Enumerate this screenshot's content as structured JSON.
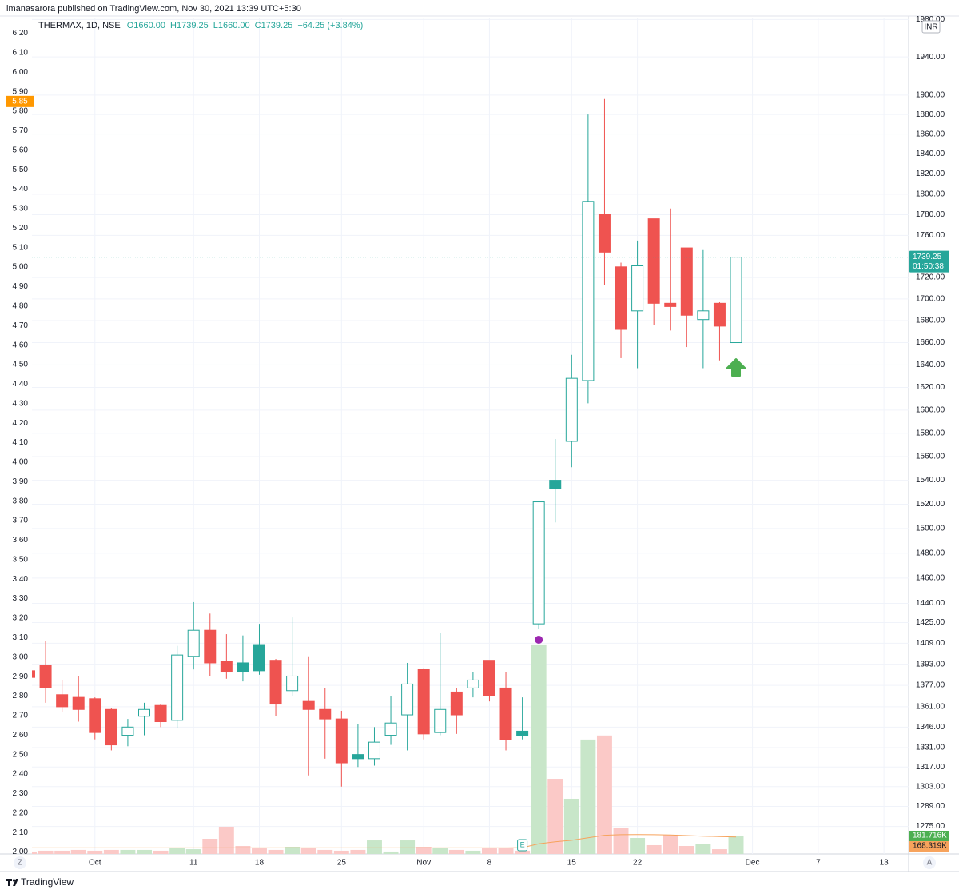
{
  "header": "imanasarora published on TradingView.com, Nov 30, 2021 13:39 UTC+5:30",
  "footer": "TradingView",
  "chart_data": {
    "type": "candlestick",
    "symbol": "THERMAX, 1D, NSE",
    "legend_values": [
      "O1660.00",
      "H1739.25",
      "L1660.00",
      "C1739.25",
      "+64.25 (+3.84%)"
    ],
    "currency": "INR",
    "countdown": "01:50:38",
    "buttons": [
      "Z",
      "A"
    ],
    "earnings_label": "E",
    "log_scale": true,
    "grid": true,
    "up_color": "#26a69a",
    "down_color": "#ef5350",
    "open": [
      1388,
      1392,
      1370,
      1368,
      1367,
      1359,
      1340,
      1354,
      1362,
      1351,
      1399,
      1419,
      1395,
      1394,
      1408,
      1396,
      1373,
      1365,
      1359,
      1352,
      1326,
      1323,
      1340,
      1355,
      1389,
      1342,
      1372,
      1375,
      1396,
      1375,
      1343,
      1424,
      1540,
      1573,
      1626,
      1780,
      1730,
      1689,
      1776,
      1696,
      1748,
      1681,
      1696,
      1660
    ],
    "high": [
      1390,
      1411,
      1381,
      1384,
      1368,
      1360,
      1352,
      1364,
      1363,
      1407,
      1441,
      1432,
      1416,
      1415,
      1424,
      1397,
      1429,
      1399,
      1375,
      1358,
      1348,
      1346,
      1369,
      1394,
      1390,
      1417,
      1375,
      1387,
      1396,
      1387,
      1368,
      1523,
      1575,
      1649,
      1880,
      1896,
      1734,
      1755,
      1776,
      1786,
      1748,
      1746,
      1697,
      1739.25
    ],
    "low": [
      1380,
      1364,
      1357,
      1350,
      1337,
      1329,
      1332,
      1340,
      1346,
      1345,
      1389,
      1384,
      1382,
      1380,
      1385,
      1354,
      1369,
      1311,
      1323,
      1303,
      1317,
      1318,
      1333,
      1329,
      1337,
      1340,
      1341,
      1368,
      1365,
      1329,
      1337,
      1420,
      1505,
      1551,
      1606,
      1713,
      1646,
      1637,
      1676,
      1671,
      1656,
      1637,
      1644,
      1660
    ],
    "close": [
      1383,
      1375,
      1361,
      1359,
      1342,
      1333,
      1346,
      1359,
      1350,
      1400,
      1419,
      1394,
      1387,
      1387,
      1388,
      1363,
      1384,
      1359,
      1352,
      1320,
      1323,
      1335,
      1349,
      1378,
      1341,
      1359,
      1355,
      1381,
      1369,
      1337,
      1340,
      1522,
      1533,
      1628,
      1793,
      1744,
      1672,
      1731,
      1696,
      1693,
      1685,
      1689,
      1675,
      1739.25
    ],
    "volume": [
      24000,
      32000,
      32000,
      40000,
      32000,
      40000,
      40000,
      40000,
      32000,
      63000,
      47000,
      150000,
      269000,
      79000,
      55000,
      40000,
      71000,
      63000,
      40000,
      32000,
      40000,
      134000,
      24000,
      134000,
      71000,
      63000,
      40000,
      32000,
      55000,
      63000,
      32000,
      2070000,
      742000,
      545000,
      1130000,
      1170000,
      253000,
      158000,
      87000,
      190000,
      79000,
      95000,
      47000,
      181716
    ],
    "volume_last_label": "181.716K",
    "volume_ma": [
      60000,
      60000,
      60000,
      60000,
      60000,
      60000,
      60000,
      60000,
      60000,
      60000,
      60000,
      60000,
      60000,
      60000,
      60000,
      60000,
      60000,
      60000,
      60000,
      60000,
      60000,
      60000,
      60000,
      60000,
      60000,
      60000,
      60000,
      60000,
      60000,
      60000,
      62000,
      100000,
      120000,
      135000,
      160000,
      185000,
      190000,
      192000,
      190000,
      188000,
      182000,
      176000,
      172000,
      168319
    ],
    "volume_ma_last_label": "168.319K",
    "volume_ma_color": "#f7a35c",
    "vlim": [
      0,
      8260000
    ],
    "xlim": [
      0.17,
      53.5
    ],
    "xticks": [
      {
        "value": 4,
        "label": "Oct"
      },
      {
        "value": 10,
        "label": "11"
      },
      {
        "value": 14,
        "label": "18"
      },
      {
        "value": 19,
        "label": "25"
      },
      {
        "value": 24,
        "label": "Nov"
      },
      {
        "value": 28,
        "label": "8"
      },
      {
        "value": 33,
        "label": "15"
      },
      {
        "value": 37,
        "label": "22"
      },
      {
        "value": 44,
        "label": "Dec"
      },
      {
        "value": 48,
        "label": "7"
      },
      {
        "value": 52,
        "label": "13"
      }
    ],
    "ylim": [
      1256,
      1982
    ],
    "yticks": [
      {
        "value": 1980,
        "label": "1980.00"
      },
      {
        "value": 1940,
        "label": "1940.00"
      },
      {
        "value": 1900,
        "label": "1900.00"
      },
      {
        "value": 1880,
        "label": "1880.00"
      },
      {
        "value": 1860,
        "label": "1860.00"
      },
      {
        "value": 1840,
        "label": "1840.00"
      },
      {
        "value": 1820,
        "label": "1820.00"
      },
      {
        "value": 1800,
        "label": "1800.00"
      },
      {
        "value": 1780,
        "label": "1780.00"
      },
      {
        "value": 1760,
        "label": "1760.00"
      },
      {
        "value": 1720,
        "label": "1720.00"
      },
      {
        "value": 1700,
        "label": "1700.00"
      },
      {
        "value": 1680,
        "label": "1680.00"
      },
      {
        "value": 1660,
        "label": "1660.00"
      },
      {
        "value": 1640,
        "label": "1640.00"
      },
      {
        "value": 1620,
        "label": "1620.00"
      },
      {
        "value": 1600,
        "label": "1600.00"
      },
      {
        "value": 1580,
        "label": "1580.00"
      },
      {
        "value": 1560,
        "label": "1560.00"
      },
      {
        "value": 1540,
        "label": "1540.00"
      },
      {
        "value": 1520,
        "label": "1520.00"
      },
      {
        "value": 1500,
        "label": "1500.00"
      },
      {
        "value": 1480,
        "label": "1480.00"
      },
      {
        "value": 1460,
        "label": "1460.00"
      },
      {
        "value": 1440,
        "label": "1440.00"
      },
      {
        "value": 1425,
        "label": "1425.00"
      },
      {
        "value": 1409,
        "label": "1409.00"
      },
      {
        "value": 1393,
        "label": "1393.00"
      },
      {
        "value": 1377,
        "label": "1377.00"
      },
      {
        "value": 1361,
        "label": "1361.00"
      },
      {
        "value": 1346,
        "label": "1346.00"
      },
      {
        "value": 1331,
        "label": "1331.00"
      },
      {
        "value": 1317,
        "label": "1317.00"
      },
      {
        "value": 1303,
        "label": "1303.00"
      },
      {
        "value": 1289,
        "label": "1289.00"
      },
      {
        "value": 1275,
        "label": "1275.00"
      }
    ],
    "y2lim": [
      1.99,
      6.28
    ],
    "y2ticks": [
      {
        "value": 6.2,
        "label": "6.20"
      },
      {
        "value": 6.1,
        "label": "6.10"
      },
      {
        "value": 6.0,
        "label": "6.00"
      },
      {
        "value": 5.9,
        "label": "5.90"
      },
      {
        "value": 5.8,
        "label": "5.80"
      },
      {
        "value": 5.7,
        "label": "5.70"
      },
      {
        "value": 5.6,
        "label": "5.60"
      },
      {
        "value": 5.5,
        "label": "5.50"
      },
      {
        "value": 5.4,
        "label": "5.40"
      },
      {
        "value": 5.3,
        "label": "5.30"
      },
      {
        "value": 5.2,
        "label": "5.20"
      },
      {
        "value": 5.1,
        "label": "5.10"
      },
      {
        "value": 5.0,
        "label": "5.00"
      },
      {
        "value": 4.9,
        "label": "4.90"
      },
      {
        "value": 4.8,
        "label": "4.80"
      },
      {
        "value": 4.7,
        "label": "4.70"
      },
      {
        "value": 4.6,
        "label": "4.60"
      },
      {
        "value": 4.5,
        "label": "4.50"
      },
      {
        "value": 4.4,
        "label": "4.40"
      },
      {
        "value": 4.3,
        "label": "4.30"
      },
      {
        "value": 4.2,
        "label": "4.20"
      },
      {
        "value": 4.1,
        "label": "4.10"
      },
      {
        "value": 4.0,
        "label": "4.00"
      },
      {
        "value": 3.9,
        "label": "3.90"
      },
      {
        "value": 3.8,
        "label": "3.80"
      },
      {
        "value": 3.7,
        "label": "3.70"
      },
      {
        "value": 3.6,
        "label": "3.60"
      },
      {
        "value": 3.5,
        "label": "3.50"
      },
      {
        "value": 3.4,
        "label": "3.40"
      },
      {
        "value": 3.3,
        "label": "3.30"
      },
      {
        "value": 3.2,
        "label": "3.20"
      },
      {
        "value": 3.1,
        "label": "3.10"
      },
      {
        "value": 3.0,
        "label": "3.00"
      },
      {
        "value": 2.9,
        "label": "2.90"
      },
      {
        "value": 2.8,
        "label": "2.80"
      },
      {
        "value": 2.7,
        "label": "2.70"
      },
      {
        "value": 2.6,
        "label": "2.60"
      },
      {
        "value": 2.5,
        "label": "2.50"
      },
      {
        "value": 2.4,
        "label": "2.40"
      },
      {
        "value": 2.3,
        "label": "2.30"
      },
      {
        "value": 2.2,
        "label": "2.20"
      },
      {
        "value": 2.1,
        "label": "2.10"
      },
      {
        "value": 2.0,
        "label": "2.00"
      }
    ],
    "y2_marker": 5.85
  }
}
